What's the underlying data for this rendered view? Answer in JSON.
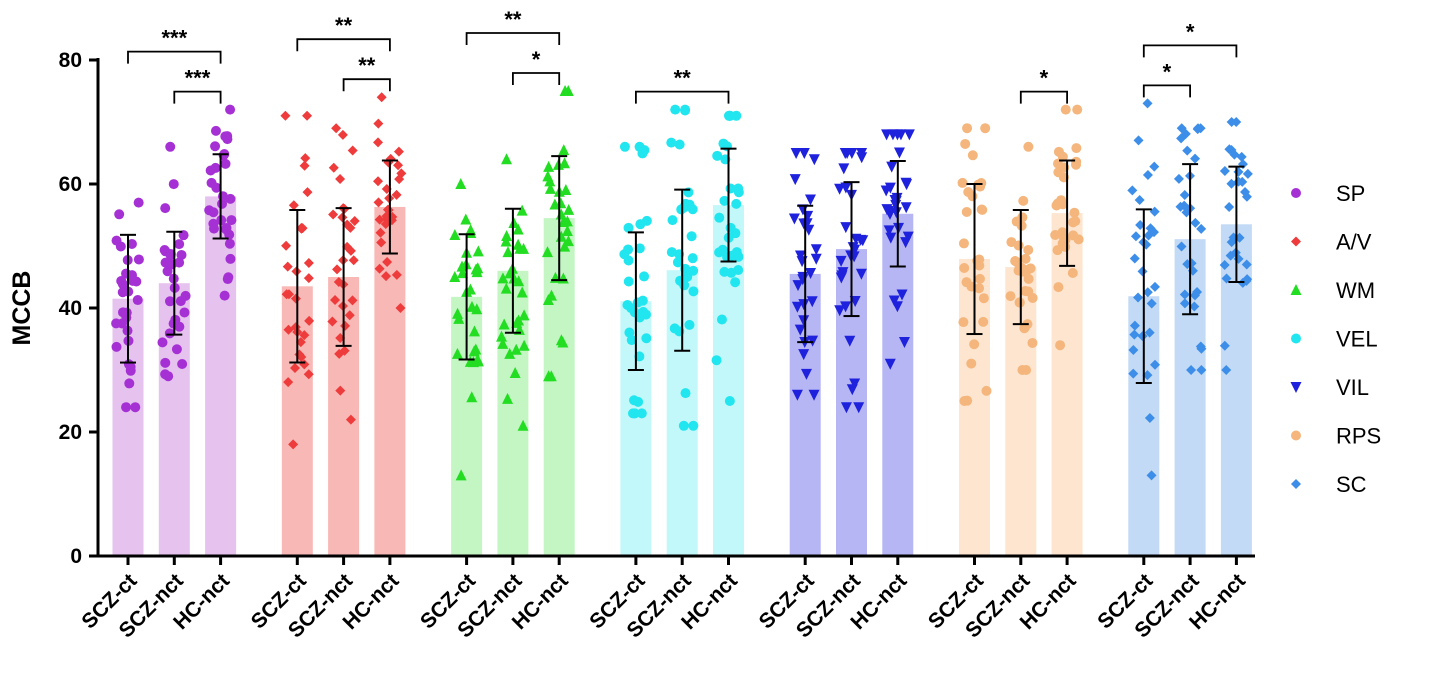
{
  "chart_data": {
    "type": "bar",
    "title": "",
    "ylabel": "MCCB",
    "xlabel": "",
    "ylim": [
      0,
      80
    ],
    "yticks": [
      "0",
      "20",
      "40",
      "60",
      "80"
    ],
    "grid": false,
    "legend_position": "right",
    "categories": [
      "SCZ-ct",
      "SCZ-nct",
      "HC-nct"
    ],
    "series": [
      {
        "name": "SP",
        "color": "#a531d4",
        "bar_color": "#e6c2ef",
        "marker": "circle",
        "means": [
          41.5,
          44,
          58
        ],
        "sds": [
          10.3,
          8.3,
          6.8
        ],
        "ranges": [
          [
            24,
            57
          ],
          [
            29,
            66
          ],
          [
            42,
            72
          ]
        ],
        "n": 30,
        "significance": [
          {
            "from": 0,
            "to": 2,
            "label": "***"
          },
          {
            "from": 1,
            "to": 2,
            "label": "***"
          }
        ]
      },
      {
        "name": "A/V",
        "color": "#ee3b3b",
        "bar_color": "#f8b8b5",
        "marker": "diamond",
        "means": [
          43.5,
          45,
          56.3
        ],
        "sds": [
          12.3,
          11.1,
          7.5
        ],
        "ranges": [
          [
            18,
            71
          ],
          [
            22,
            69
          ],
          [
            40,
            74
          ]
        ],
        "n": 30,
        "significance": [
          {
            "from": 0,
            "to": 2,
            "label": "**"
          },
          {
            "from": 1,
            "to": 2,
            "label": "**"
          }
        ]
      },
      {
        "name": "WM",
        "color": "#22dd22",
        "bar_color": "#c4f6c4",
        "marker": "triangle-up",
        "means": [
          41.8,
          46,
          54.5
        ],
        "sds": [
          10.1,
          10,
          10
        ],
        "ranges": [
          [
            13,
            60
          ],
          [
            21,
            64
          ],
          [
            29,
            75
          ]
        ],
        "n": 30,
        "significance": [
          {
            "from": 0,
            "to": 2,
            "label": "**"
          },
          {
            "from": 1,
            "to": 2,
            "label": "*"
          }
        ]
      },
      {
        "name": "VEL",
        "color": "#22e6ef",
        "bar_color": "#c3f8fb",
        "marker": "circle",
        "means": [
          41.1,
          46.1,
          56.6
        ],
        "sds": [
          11.1,
          13,
          9.1
        ],
        "ranges": [
          [
            23,
            66
          ],
          [
            21,
            72
          ],
          [
            25,
            71
          ]
        ],
        "n": 30,
        "significance": [
          {
            "from": 0,
            "to": 2,
            "label": "**"
          }
        ]
      },
      {
        "name": "VIL",
        "color": "#1f22dd",
        "bar_color": "#b6b6f4",
        "marker": "triangle-down",
        "means": [
          45.5,
          49.5,
          55.2
        ],
        "sds": [
          11,
          10.8,
          8.5
        ],
        "ranges": [
          [
            26,
            65
          ],
          [
            24,
            65
          ],
          [
            31,
            68
          ]
        ],
        "n": 30,
        "significance": []
      },
      {
        "name": "RPS",
        "color": "#f4b67c",
        "bar_color": "#fde5d0",
        "marker": "circle",
        "means": [
          47.9,
          46.6,
          55.3
        ],
        "sds": [
          12.1,
          9.2,
          8.5
        ],
        "ranges": [
          [
            25,
            69
          ],
          [
            30,
            66
          ],
          [
            34,
            72
          ]
        ],
        "n": 30,
        "significance": [
          {
            "from": 1,
            "to": 2,
            "label": "*"
          }
        ]
      },
      {
        "name": "SC",
        "color": "#3d8ee8",
        "bar_color": "#c2daf6",
        "marker": "diamond",
        "means": [
          41.9,
          51.1,
          53.5
        ],
        "sds": [
          14,
          12.1,
          9.3
        ],
        "ranges": [
          [
            13,
            73
          ],
          [
            30,
            69
          ],
          [
            30,
            70
          ]
        ],
        "n": 30,
        "significance": [
          {
            "from": 0,
            "to": 1,
            "label": "*"
          },
          {
            "from": 0,
            "to": 2,
            "label": "*"
          }
        ]
      }
    ]
  }
}
